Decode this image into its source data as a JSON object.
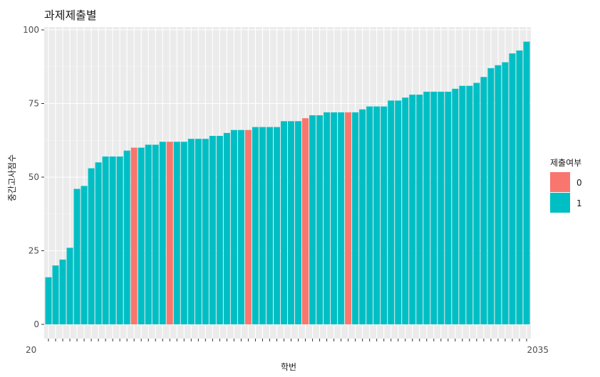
{
  "chart_data": {
    "type": "bar",
    "title": "과제제출별",
    "xlabel": "학번",
    "ylabel": "중간고사점수",
    "ylim": [
      0,
      100
    ],
    "yticks": [
      0,
      25,
      50,
      75,
      100
    ],
    "grid": true,
    "legend": {
      "title": "제출여부",
      "placement": "right",
      "entries": [
        {
          "label": "0",
          "color": "#F8766D"
        },
        {
          "label": "1",
          "color": "#00BFC4"
        }
      ]
    },
    "xtick_labels_visible": [
      "20",
      "2035"
    ],
    "values": [
      16,
      20,
      22,
      26,
      46,
      47,
      53,
      55,
      57,
      57,
      57,
      59,
      60,
      60,
      61,
      61,
      62,
      62,
      62,
      62,
      63,
      63,
      63,
      64,
      64,
      65,
      66,
      66,
      66,
      67,
      67,
      67,
      67,
      69,
      69,
      69,
      70,
      71,
      71,
      72,
      72,
      72,
      72,
      72,
      73,
      74,
      74,
      74,
      76,
      76,
      77,
      78,
      78,
      79,
      79,
      79,
      79,
      80,
      81,
      81,
      82,
      84,
      87,
      88,
      89,
      92,
      93,
      96
    ],
    "submitted": [
      1,
      1,
      1,
      1,
      1,
      1,
      1,
      1,
      1,
      1,
      1,
      1,
      0,
      1,
      1,
      1,
      1,
      0,
      1,
      1,
      1,
      1,
      1,
      1,
      1,
      1,
      1,
      1,
      0,
      1,
      1,
      1,
      1,
      1,
      1,
      1,
      0,
      1,
      1,
      1,
      1,
      1,
      0,
      1,
      1,
      1,
      1,
      1,
      1,
      1,
      1,
      1,
      1,
      1,
      1,
      1,
      1,
      1,
      1,
      1,
      1,
      1,
      1,
      1,
      1,
      1,
      1,
      1
    ]
  }
}
